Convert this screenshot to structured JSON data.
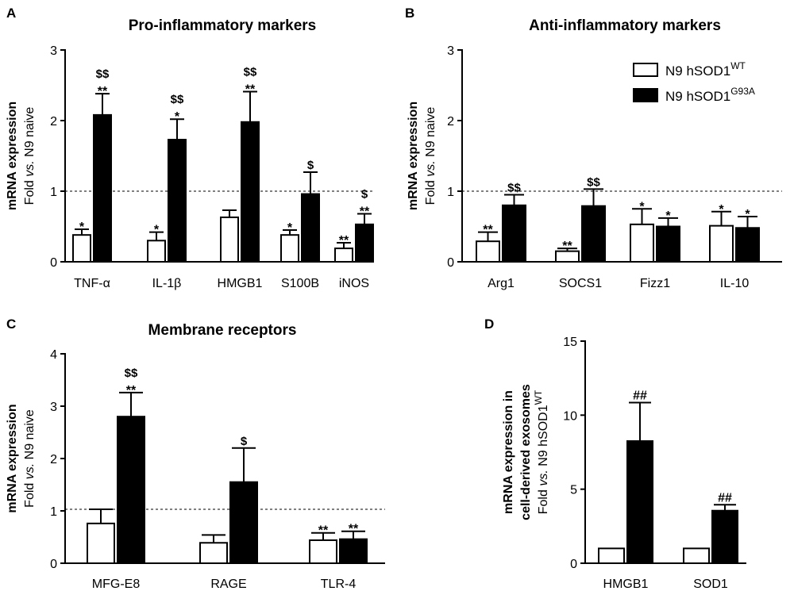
{
  "legend": {
    "wt": {
      "base": "N9 hSOD1",
      "sup": "WT",
      "fill": "#ffffff"
    },
    "mut": {
      "base": "N9 hSOD1",
      "sup": "G93A",
      "fill": "#000000"
    }
  },
  "chart_data": [
    {
      "id": "A",
      "letter": "A",
      "type": "bar",
      "title": "Pro-inflammatory markers",
      "ylabel_main": "mRNA expression",
      "ylabel_sub": {
        "pre": "Fold ",
        "italic": "vs.",
        "post": " N9 naive"
      },
      "ylim": [
        0,
        3
      ],
      "yticks": [
        "0",
        "1",
        "2",
        "3"
      ],
      "ref_line": 1,
      "categories": [
        "TNF-α",
        "IL-1β",
        "HMGB1",
        "S100B",
        "iNOS"
      ],
      "series": [
        {
          "name": "N9 hSOD1 WT",
          "values": [
            0.38,
            0.3,
            0.63,
            0.38,
            0.19
          ],
          "errors": [
            0.08,
            0.12,
            0.1,
            0.07,
            0.08
          ],
          "annotations": [
            [
              "*"
            ],
            [
              "*"
            ],
            [],
            [
              "*"
            ],
            [
              "**"
            ]
          ]
        },
        {
          "name": "N9 hSOD1 G93A",
          "values": [
            2.08,
            1.73,
            1.98,
            0.96,
            0.53
          ],
          "errors": [
            0.3,
            0.29,
            0.43,
            0.31,
            0.15
          ],
          "annotations": [
            [
              "**",
              "$$"
            ],
            [
              "*",
              "$$"
            ],
            [
              "**",
              "$$"
            ],
            [
              "$"
            ],
            [
              "**",
              "$"
            ]
          ]
        }
      ]
    },
    {
      "id": "B",
      "letter": "B",
      "type": "bar",
      "title": "Anti-inflammatory markers",
      "ylabel_main": "mRNA expression",
      "ylabel_sub": {
        "pre": "Fold ",
        "italic": "vs.",
        "post": " N9 naive"
      },
      "ylim": [
        0,
        3
      ],
      "yticks": [
        "0",
        "1",
        "2",
        "3"
      ],
      "ref_line": 1,
      "categories": [
        "Arg1",
        "SOCS1",
        "Fizz1",
        "IL-10"
      ],
      "series": [
        {
          "name": "N9 hSOD1 WT",
          "values": [
            0.29,
            0.15,
            0.53,
            0.51
          ],
          "errors": [
            0.13,
            0.04,
            0.22,
            0.2
          ],
          "annotations": [
            [
              "**"
            ],
            [
              "**"
            ],
            [
              "*"
            ],
            [
              "*"
            ]
          ]
        },
        {
          "name": "N9 hSOD1 G93A",
          "values": [
            0.8,
            0.79,
            0.5,
            0.48
          ],
          "errors": [
            0.15,
            0.24,
            0.12,
            0.16
          ],
          "annotations": [
            [
              "$$"
            ],
            [
              "$$"
            ],
            [
              "*"
            ],
            [
              "*"
            ]
          ]
        }
      ]
    },
    {
      "id": "C",
      "letter": "C",
      "type": "bar",
      "title": "Membrane receptors",
      "ylabel_main": "mRNA expression",
      "ylabel_sub": {
        "pre": "Fold ",
        "italic": "vs.",
        "post": " N9 naive"
      },
      "ylim": [
        0,
        4
      ],
      "yticks": [
        "0",
        "1",
        "2",
        "3",
        "4"
      ],
      "ref_line": 1.03,
      "categories": [
        "MFG-E8",
        "RAGE",
        "TLR-4"
      ],
      "series": [
        {
          "name": "N9 hSOD1 WT",
          "values": [
            0.76,
            0.39,
            0.44
          ],
          "errors": [
            0.27,
            0.15,
            0.14
          ],
          "annotations": [
            [],
            [],
            [
              "**"
            ]
          ]
        },
        {
          "name": "N9 hSOD1 G93A",
          "values": [
            2.8,
            1.55,
            0.46
          ],
          "errors": [
            0.46,
            0.65,
            0.15
          ],
          "annotations": [
            [
              "**",
              "$$"
            ],
            [
              "$"
            ],
            [
              "**"
            ]
          ]
        }
      ]
    },
    {
      "id": "D",
      "letter": "D",
      "type": "bar",
      "title": "",
      "ylabel_main": "mRNA expression in",
      "ylabel_main2": "cell-derived exosomes",
      "ylabel_sub": {
        "pre": "Fold ",
        "italic": "vs.",
        "post": " N9 hSOD1",
        "sup": "WT"
      },
      "ylim": [
        0,
        15
      ],
      "yticks": [
        "0",
        "5",
        "10",
        "15"
      ],
      "categories": [
        "HMGB1",
        "SOD1"
      ],
      "series": [
        {
          "name": "N9 hSOD1 WT",
          "values": [
            1,
            1
          ],
          "errors": [
            0,
            0
          ],
          "annotations": [
            [],
            []
          ]
        },
        {
          "name": "N9 hSOD1 G93A",
          "values": [
            8.25,
            3.55
          ],
          "errors": [
            2.6,
            0.4
          ],
          "annotations": [
            [
              "##"
            ],
            [
              "##"
            ]
          ]
        }
      ]
    }
  ]
}
